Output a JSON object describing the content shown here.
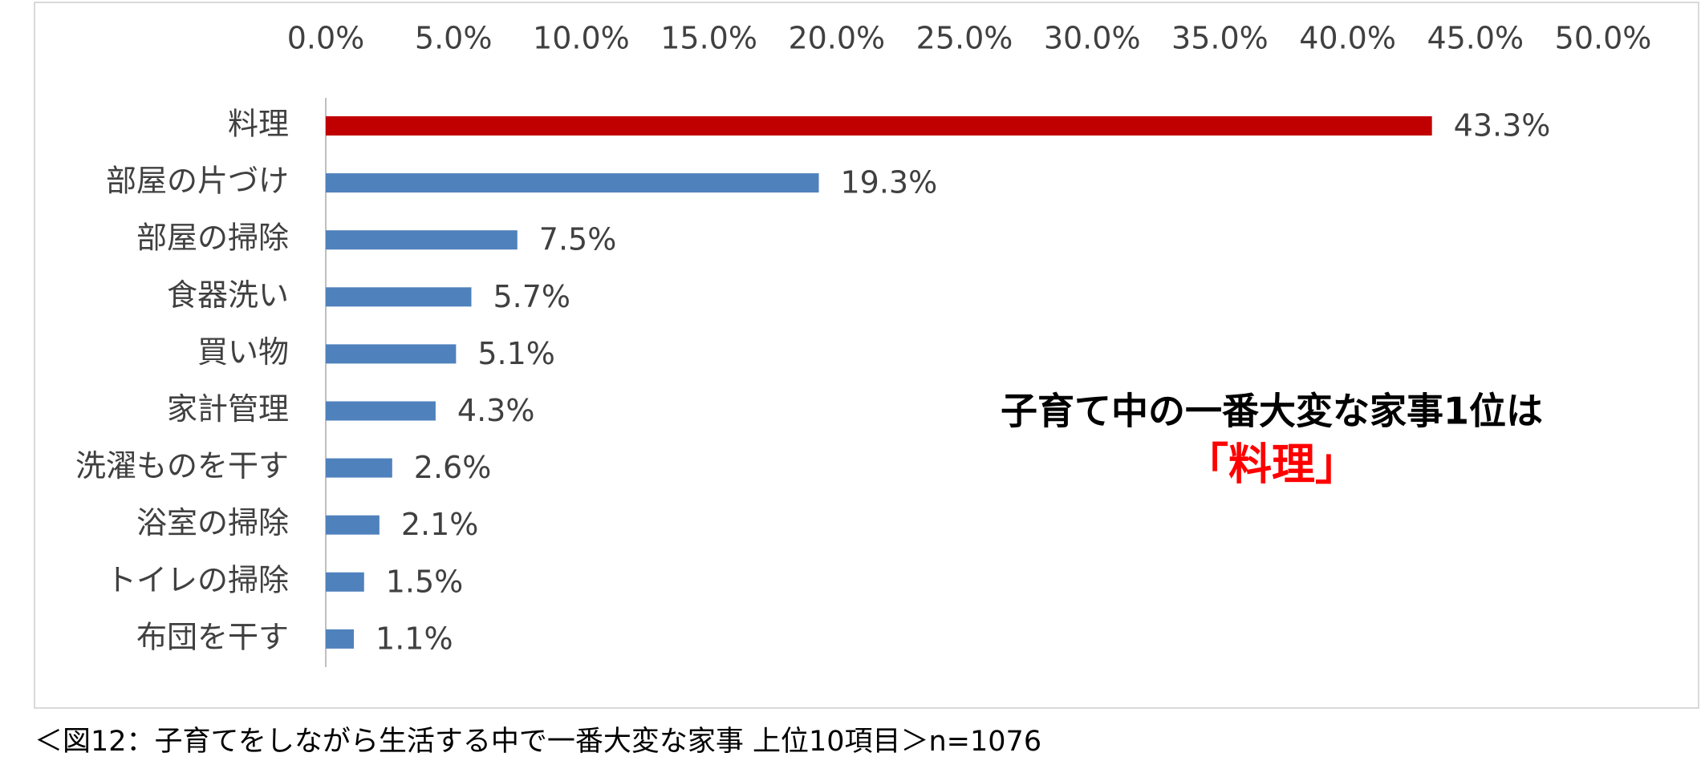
{
  "chart_data": {
    "type": "barh",
    "categories": [
      "料理",
      "部屋の片づけ",
      "部屋の掃除",
      "食器洗い",
      "買い物",
      "家計管理",
      "洗濯ものを干す",
      "浴室の掃除",
      "トイレの掃除",
      "布団を干す"
    ],
    "values": [
      43.3,
      19.3,
      7.5,
      5.7,
      5.1,
      4.3,
      2.6,
      2.1,
      1.5,
      1.1
    ],
    "value_labels": [
      "43.3%",
      "19.3%",
      "7.5%",
      "5.7%",
      "5.1%",
      "4.3%",
      "2.6%",
      "2.1%",
      "1.5%",
      "1.1%"
    ],
    "colors": [
      "#c00000",
      "#4f81bd",
      "#4f81bd",
      "#4f81bd",
      "#4f81bd",
      "#4f81bd",
      "#4f81bd",
      "#4f81bd",
      "#4f81bd",
      "#4f81bd"
    ],
    "xlim": [
      0,
      50
    ],
    "xticks": [
      {
        "value": 0,
        "label": "0.0%"
      },
      {
        "value": 5,
        "label": "5.0%"
      },
      {
        "value": 10,
        "label": "10.0%"
      },
      {
        "value": 15,
        "label": "15.0%"
      },
      {
        "value": 20,
        "label": "20.0%"
      },
      {
        "value": 25,
        "label": "25.0%"
      },
      {
        "value": 30,
        "label": "30.0%"
      },
      {
        "value": 35,
        "label": "35.0%"
      },
      {
        "value": 40,
        "label": "40.0%"
      },
      {
        "value": 45,
        "label": "45.0%"
      },
      {
        "value": 50,
        "label": "50.0%"
      }
    ],
    "grid": false,
    "annotation": [
      "子育て中の一番大変な家事1位は",
      "「料理」"
    ],
    "caption": "＜図12：子育てをしながら生活する中で一番大変な家事 上位10項目＞n=1076"
  }
}
